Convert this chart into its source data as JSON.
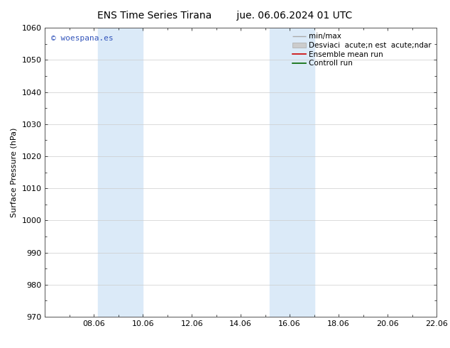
{
  "title_left": "ENS Time Series Tirana",
  "title_right": "jue. 06.06.2024 01 UTC",
  "ylabel": "Surface Pressure (hPa)",
  "ylim": [
    970,
    1060
  ],
  "yticks": [
    970,
    980,
    990,
    1000,
    1010,
    1020,
    1030,
    1040,
    1050,
    1060
  ],
  "xlim": [
    0,
    16
  ],
  "xtick_labels": [
    "08.06",
    "10.06",
    "12.06",
    "14.06",
    "16.06",
    "18.06",
    "20.06",
    "22.06"
  ],
  "xtick_positions": [
    2,
    4,
    6,
    8,
    10,
    12,
    14,
    16
  ],
  "shaded_regions": [
    {
      "x_start": 2.17,
      "x_end": 4.0,
      "color": "#dbeaf8"
    },
    {
      "x_start": 9.17,
      "x_end": 11.0,
      "color": "#dbeaf8"
    }
  ],
  "watermark_text": "© woespana.es",
  "watermark_color": "#3355bb",
  "legend_labels": [
    "min/max",
    "Desviaci  acute;n est  acute;ndar",
    "Ensemble mean run",
    "Controll run"
  ],
  "legend_colors": [
    "#aaaaaa",
    "#cccccc",
    "#cc0000",
    "#006600"
  ],
  "background_color": "#ffffff",
  "plot_bg_color": "#ffffff",
  "grid_color": "#cccccc",
  "title_fontsize": 10,
  "label_fontsize": 8,
  "tick_fontsize": 8,
  "legend_fontsize": 7.5,
  "watermark_fontsize": 8
}
